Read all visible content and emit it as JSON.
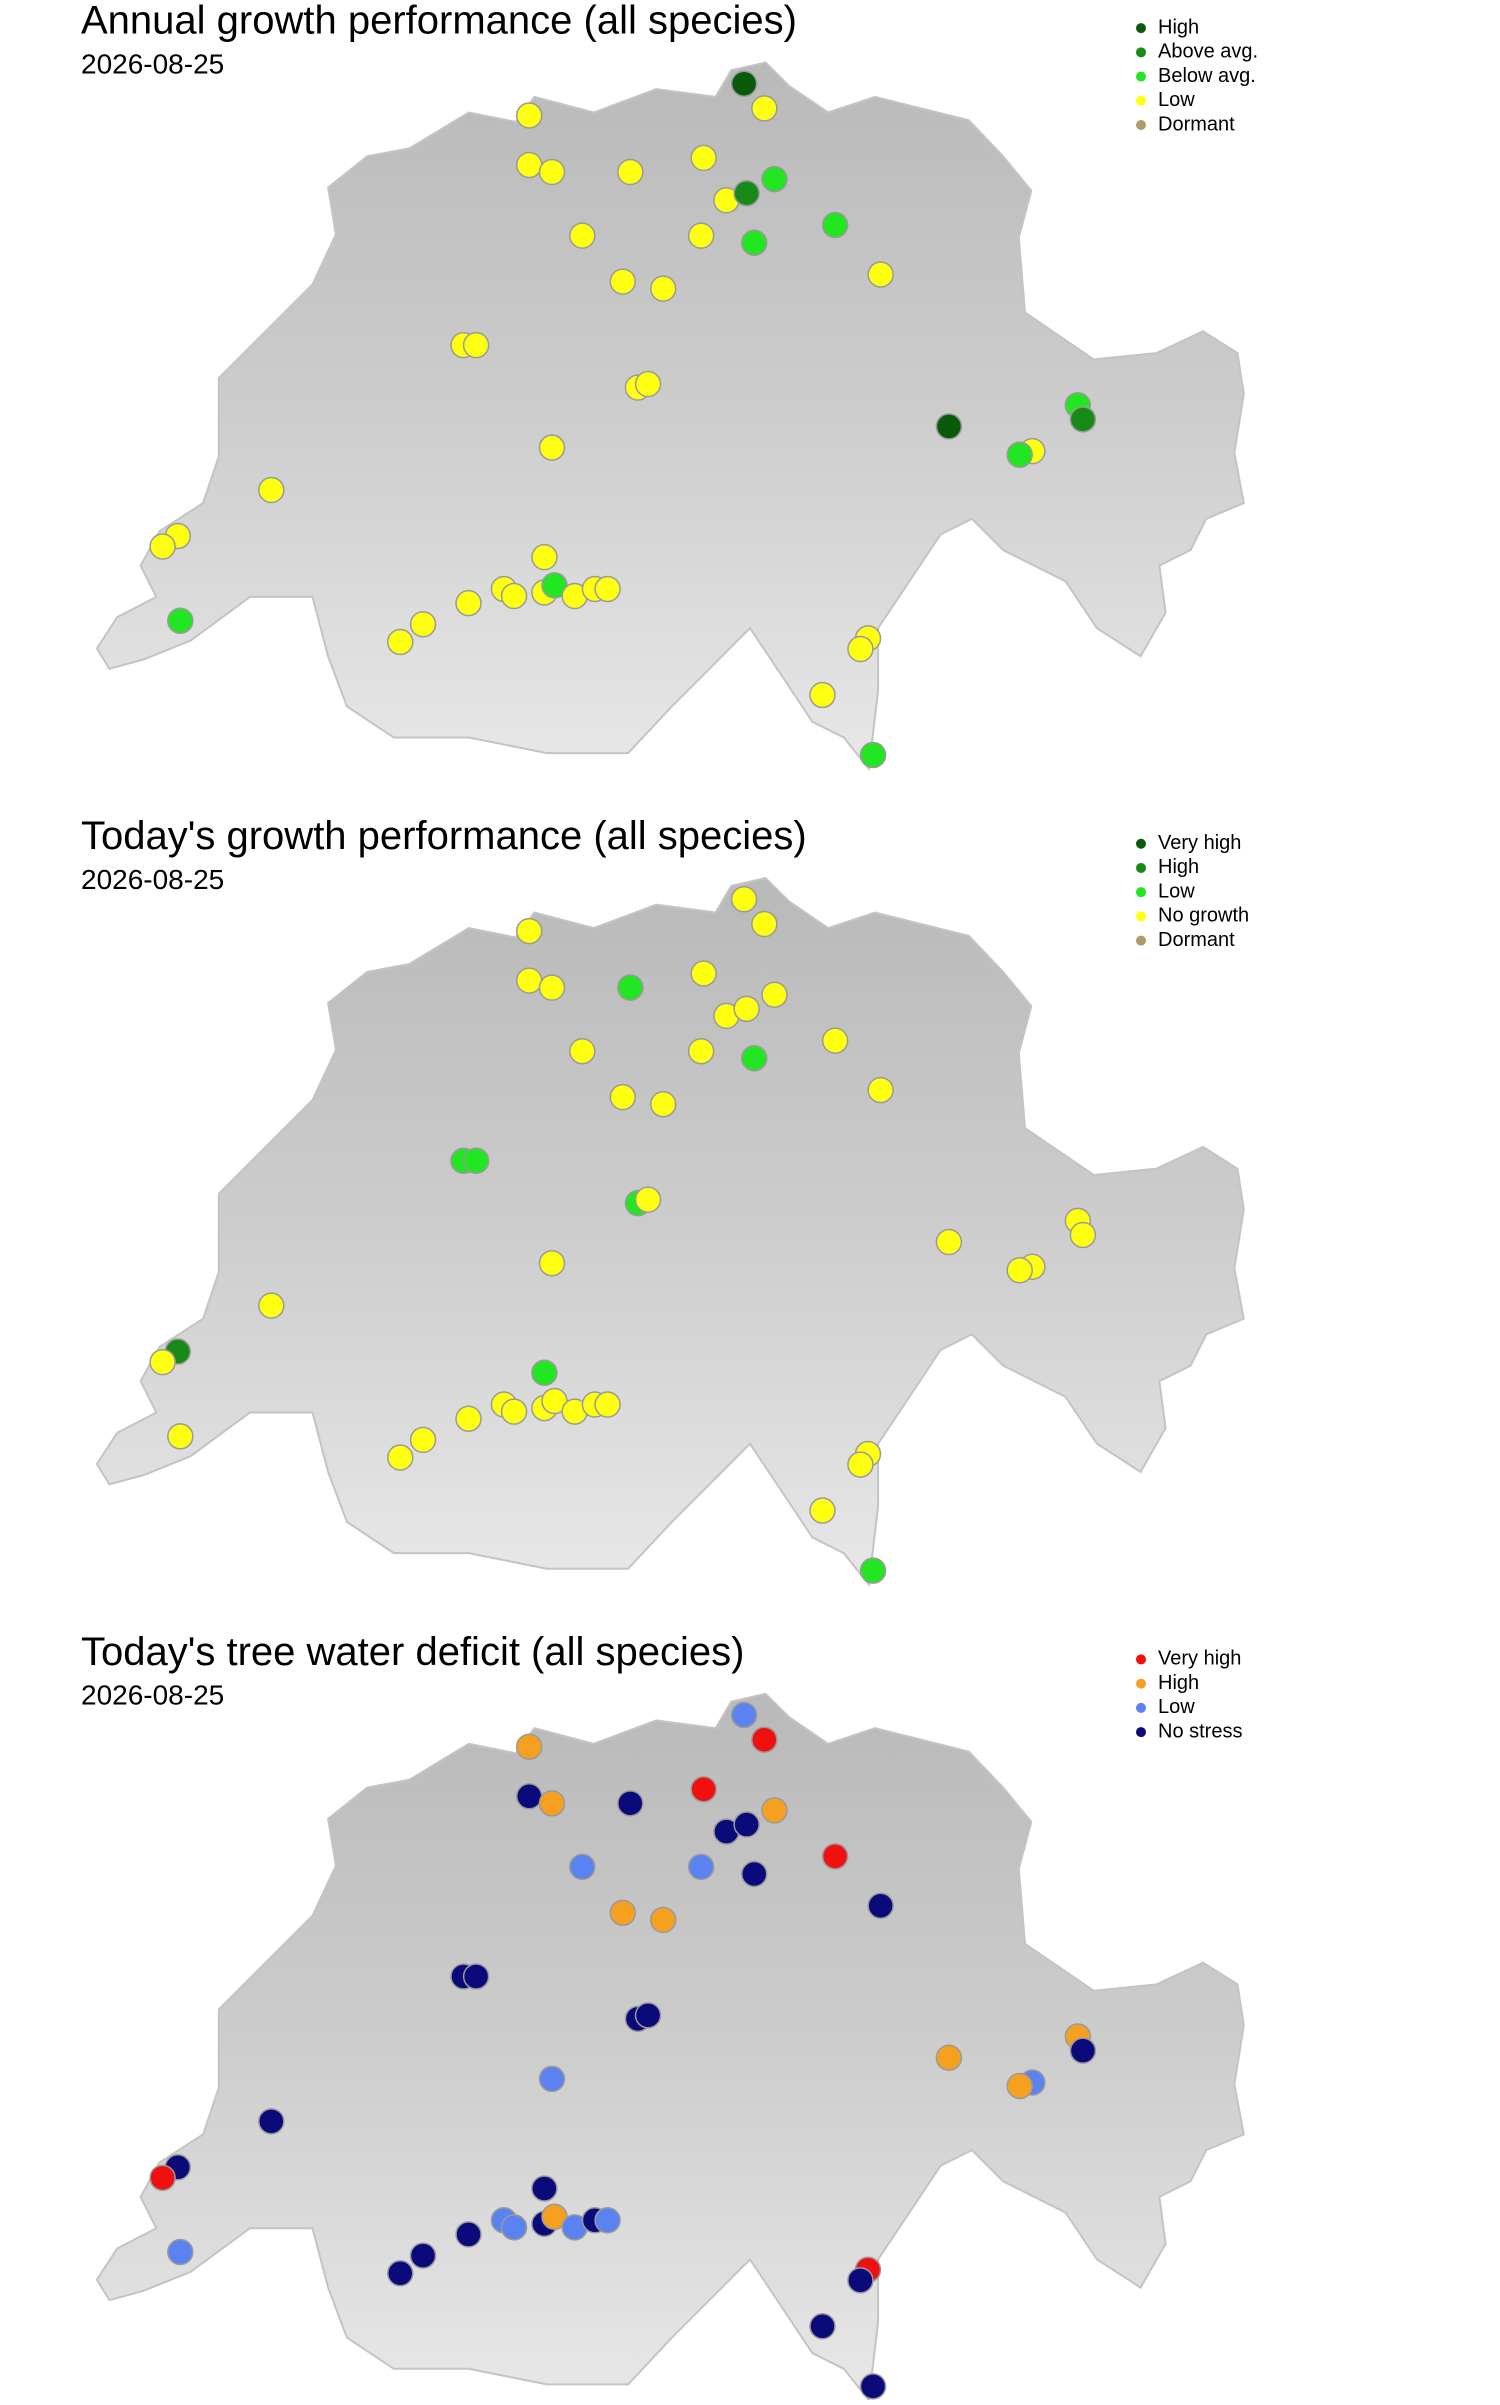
{
  "xlim": [
    5.96,
    10.49
  ],
  "ylim": [
    45.82,
    47.81
  ],
  "sites": {
    "lon": [
      8.52,
      8.6,
      7.67,
      7.67,
      7.76,
      8.07,
      8.36,
      8.64,
      8.45,
      8.53,
      8.56,
      8.35,
      7.88,
      8.88,
      9.06,
      8.04,
      8.2,
      7.41,
      7.46,
      8.1,
      8.14,
      7.76,
      9.33,
      9.84,
      9.86,
      9.66,
      9.61,
      6.65,
      6.28,
      6.22,
      6.29,
      7.73,
      7.57,
      7.61,
      7.73,
      7.77,
      7.85,
      7.93,
      7.98,
      7.43,
      7.25,
      7.16,
      9.01,
      8.98,
      8.83,
      9.03
    ],
    "lat": [
      47.75,
      47.68,
      47.66,
      47.52,
      47.5,
      47.5,
      47.54,
      47.48,
      47.42,
      47.44,
      47.3,
      47.32,
      47.32,
      47.35,
      47.21,
      47.19,
      47.17,
      47.01,
      47.01,
      46.89,
      46.9,
      46.72,
      46.78,
      46.84,
      46.8,
      46.71,
      46.7,
      46.6,
      46.47,
      46.44,
      46.23,
      46.41,
      46.32,
      46.3,
      46.31,
      46.33,
      46.3,
      46.32,
      46.32,
      46.28,
      46.22,
      46.17,
      46.18,
      46.15,
      46.02,
      45.85
    ]
  },
  "maps": [
    {
      "title": "Annual growth performance (all species)",
      "date": "2026-08-25",
      "legend": [
        {
          "name": "High",
          "color": "#0b5a0b"
        },
        {
          "name": "Above avg.",
          "color": "#178a17"
        },
        {
          "name": "Below avg.",
          "color": "#22e622"
        },
        {
          "name": "Low",
          "color": "#ffff10"
        },
        {
          "name": "Dormant",
          "color": "#b09a6c"
        }
      ],
      "status": [
        0,
        3,
        3,
        3,
        3,
        3,
        3,
        2,
        3,
        1,
        2,
        3,
        3,
        2,
        3,
        3,
        3,
        3,
        3,
        3,
        3,
        3,
        0,
        2,
        1,
        3,
        2,
        3,
        3,
        3,
        2,
        3,
        3,
        3,
        3,
        2,
        3,
        3,
        3,
        3,
        3,
        3,
        3,
        3,
        3,
        2
      ]
    },
    {
      "title": "Today's growth performance (all species)",
      "date": "2026-08-25",
      "legend": [
        {
          "name": "Very high",
          "color": "#0b5a0b"
        },
        {
          "name": "High",
          "color": "#178a17"
        },
        {
          "name": "Low",
          "color": "#22e622"
        },
        {
          "name": "No growth",
          "color": "#ffff10"
        },
        {
          "name": "Dormant",
          "color": "#b09a6c"
        }
      ],
      "status": [
        3,
        3,
        3,
        3,
        3,
        2,
        3,
        3,
        3,
        3,
        2,
        3,
        3,
        3,
        3,
        3,
        3,
        2,
        2,
        2,
        3,
        3,
        3,
        3,
        3,
        3,
        3,
        3,
        1,
        3,
        3,
        2,
        3,
        3,
        3,
        3,
        3,
        3,
        3,
        3,
        3,
        3,
        3,
        3,
        3,
        2
      ]
    },
    {
      "title": "Today's tree water deficit (all species)",
      "date": "2026-08-25",
      "legend": [
        {
          "name": "Very high",
          "color": "#f01010"
        },
        {
          "name": "High",
          "color": "#f5a020"
        },
        {
          "name": "Low",
          "color": "#5a82f0"
        },
        {
          "name": "No stress",
          "color": "#0a0a7a"
        }
      ],
      "status": [
        2,
        0,
        1,
        3,
        1,
        3,
        0,
        1,
        3,
        3,
        3,
        2,
        2,
        0,
        3,
        1,
        1,
        3,
        3,
        3,
        3,
        2,
        1,
        1,
        3,
        2,
        1,
        3,
        3,
        0,
        2,
        3,
        2,
        2,
        3,
        1,
        2,
        3,
        2,
        3,
        3,
        3,
        0,
        3,
        3,
        3
      ]
    }
  ]
}
